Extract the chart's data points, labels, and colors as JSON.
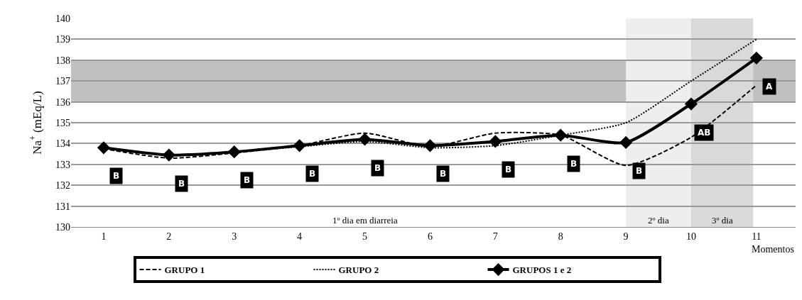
{
  "chart_data": {
    "type": "line",
    "ylabel": "Na$^{+}$ (mEq/L)",
    "xlabel": "Momentos",
    "x": [
      1,
      2,
      3,
      4,
      5,
      6,
      7,
      8,
      9,
      10,
      11
    ],
    "xlim": [
      0.5,
      11.6
    ],
    "xticks": [
      1,
      2,
      3,
      4,
      5,
      6,
      7,
      8,
      9,
      10,
      11
    ],
    "ylim": [
      130,
      140
    ],
    "yticks": [
      130,
      131,
      132,
      133,
      134,
      135,
      136,
      137,
      138,
      139,
      140
    ],
    "grid": "y",
    "legend": "bottom",
    "series": [
      {
        "name": "GRUPO 1",
        "color": "#000000",
        "line_style": "dashed",
        "marker": "none",
        "values": [
          133.75,
          133.3,
          133.55,
          133.9,
          134.5,
          133.85,
          134.5,
          134.4,
          132.95,
          134.3,
          136.8
        ]
      },
      {
        "name": "GRUPO 2",
        "color": "#000000",
        "line_style": "dotted",
        "marker": "none",
        "values": [
          133.8,
          133.45,
          133.6,
          133.85,
          134.1,
          133.8,
          133.9,
          134.4,
          135.0,
          137.0,
          139.0
        ]
      },
      {
        "name": "GRUPOS 1 e 2",
        "color": "#000000",
        "line_style": "solid",
        "marker": "diamond",
        "values": [
          133.8,
          133.45,
          133.6,
          133.9,
          134.2,
          133.9,
          134.1,
          134.4,
          134.05,
          135.9,
          138.1
        ]
      }
    ],
    "bands": [
      {
        "axis": "y",
        "from": 136,
        "to": 138,
        "color": "#c0c0c0"
      },
      {
        "axis": "x",
        "from": 9,
        "to": 10,
        "color": "#eeeeee",
        "label": "2º dia"
      },
      {
        "axis": "x",
        "from": 10,
        "to": 10.95,
        "color": "#d9d9d9",
        "label": "3º dia"
      }
    ],
    "annotations": [
      "1º dia em diarreia",
      "B",
      "B",
      "B",
      "B",
      "B",
      "B",
      "B",
      "B",
      "B",
      "AB",
      "A"
    ]
  }
}
